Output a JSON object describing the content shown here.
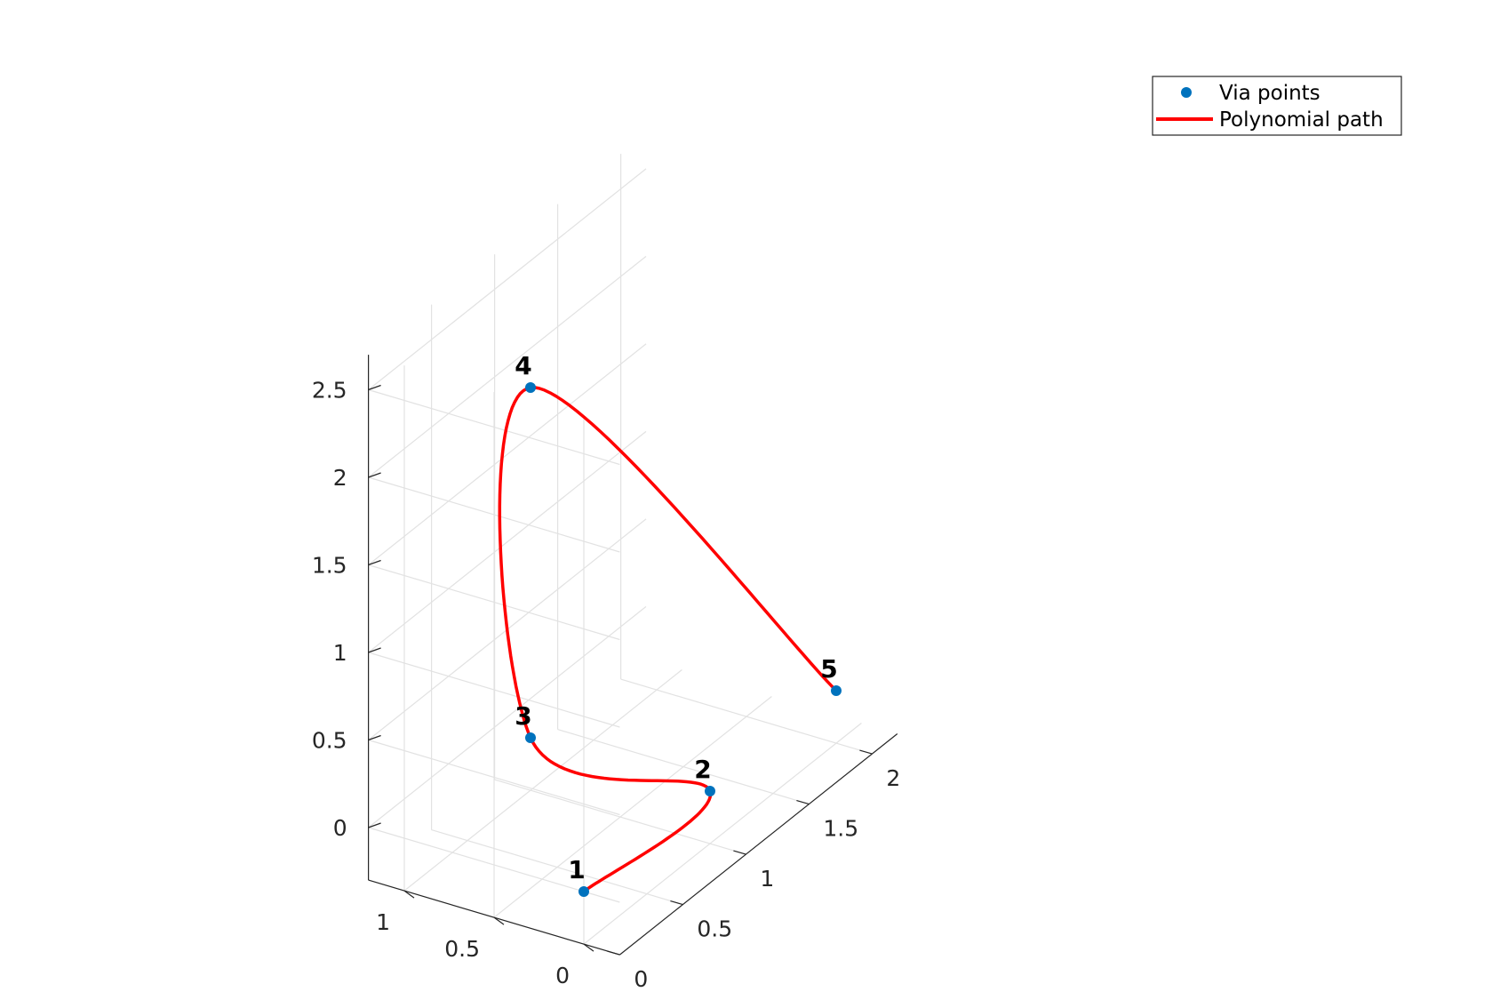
{
  "chart_data": {
    "type": "line3d",
    "title": "",
    "xlabel": "",
    "ylabel": "",
    "zlabel": "",
    "grid": true,
    "legend_position": "top-right",
    "colors": {
      "via_points": "#0072BD",
      "path": "#FF0000",
      "axis": "#262626",
      "grid": "#E2E2E2"
    },
    "axes": {
      "x": {
        "ticks": [
          0,
          0.5,
          1
        ],
        "tick_labels": [
          "0",
          "0.5",
          "1"
        ],
        "lim": [
          -0.2,
          1.2
        ]
      },
      "y": {
        "ticks": [
          0,
          0.5,
          1,
          1.5,
          2
        ],
        "tick_labels": [
          "0",
          "0.5",
          "1",
          "1.5",
          "2"
        ],
        "lim": [
          0,
          2.2
        ]
      },
      "z": {
        "ticks": [
          0,
          0.5,
          1,
          1.5,
          2,
          2.5
        ],
        "tick_labels": [
          "0",
          "0.5",
          "1",
          "1.5",
          "2",
          "2.5"
        ],
        "lim": [
          -0.3,
          2.7
        ]
      }
    },
    "legend": [
      {
        "label": "Via points",
        "marker": "circle"
      },
      {
        "label": "Polynomial path",
        "marker": "line"
      }
    ],
    "series": [
      {
        "name": "Via points",
        "points": [
          {
            "label": "1",
            "x": 0,
            "y": 0,
            "z": 0
          },
          {
            "label": "2",
            "x": 0,
            "y": 1,
            "z": 0
          },
          {
            "label": "3",
            "x": 1,
            "y": 1,
            "z": 0
          },
          {
            "label": "4",
            "x": 1,
            "y": 1,
            "z": 2
          },
          {
            "label": "5",
            "x": 0,
            "y": 2,
            "z": 0
          }
        ]
      }
    ]
  }
}
